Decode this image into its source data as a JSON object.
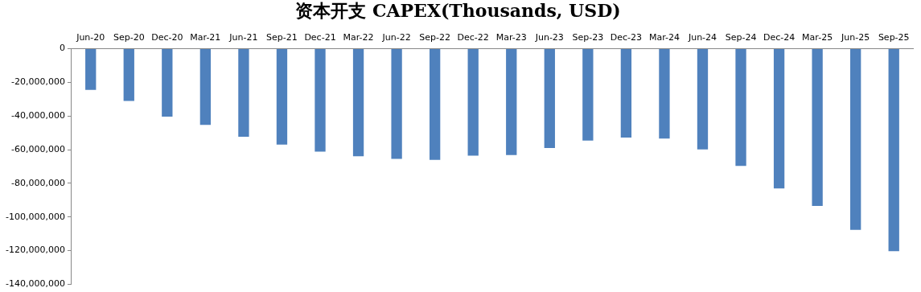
{
  "chart_data": {
    "type": "bar",
    "title": "资本开支 CAPEX(Thousands, USD)",
    "categories": [
      "Jun-20",
      "Sep-20",
      "Dec-20",
      "Mar-21",
      "Jun-21",
      "Sep-21",
      "Dec-21",
      "Mar-22",
      "Jun-22",
      "Sep-22",
      "Dec-22",
      "Mar-23",
      "Jun-23",
      "Sep-23",
      "Dec-23",
      "Mar-24",
      "Jun-24",
      "Sep-24",
      "Dec-24",
      "Mar-25",
      "Jun-25",
      "Sep-25"
    ],
    "values": [
      -24400000,
      -31000000,
      -40400000,
      -45300000,
      -52300000,
      -57000000,
      -61200000,
      -63900000,
      -65500000,
      -66000000,
      -63600000,
      -63200000,
      -59000000,
      -54600000,
      -52800000,
      -53400000,
      -59800000,
      -69700000,
      -83000000,
      -93400000,
      -107700000,
      -120300000
    ],
    "color": "#4f81bd",
    "ylim": [
      -140000000,
      0
    ],
    "yticks": [
      {
        "value": -140000000,
        "label": "-140,000,000"
      },
      {
        "value": -120000000,
        "label": "-120,000,000"
      },
      {
        "value": -100000000,
        "label": "-100,000,000"
      },
      {
        "value": -80000000,
        "label": "-80,000,000"
      },
      {
        "value": -60000000,
        "label": "-60,000,000"
      },
      {
        "value": -40000000,
        "label": "-40,000,000"
      },
      {
        "value": -20000000,
        "label": "-20,000,000"
      },
      {
        "value": 0,
        "label": "0"
      }
    ],
    "grid": false,
    "legend": false
  }
}
